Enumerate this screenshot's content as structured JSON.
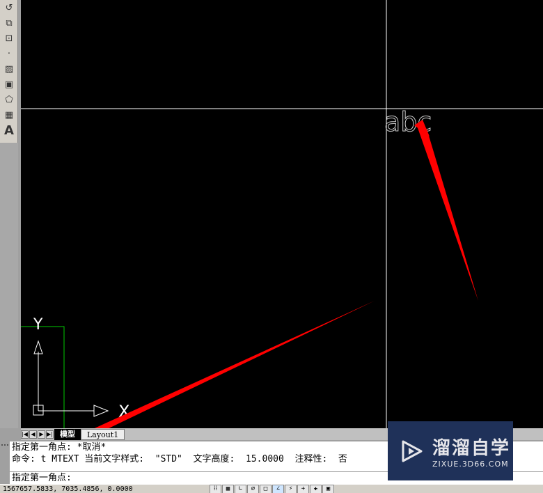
{
  "toolbar": {
    "items": [
      {
        "icon": "revision-cloud-icon",
        "glyph": "↺"
      },
      {
        "icon": "insert-block-icon",
        "glyph": "⧉"
      },
      {
        "icon": "make-block-icon",
        "glyph": "⊡"
      },
      {
        "icon": "point-icon",
        "glyph": "·"
      },
      {
        "icon": "hatch-icon",
        "glyph": "▨"
      },
      {
        "icon": "gradient-icon",
        "glyph": "▣"
      },
      {
        "icon": "region-icon",
        "glyph": "⬠"
      },
      {
        "icon": "table-icon",
        "glyph": "▦"
      },
      {
        "icon": "multiline-text-icon",
        "glyph": "A"
      }
    ]
  },
  "canvas": {
    "drawn_text": "abc",
    "ucs": {
      "x_label": "X",
      "y_label": "Y"
    },
    "annotation_color": "#ff0000"
  },
  "tabs": {
    "nav": [
      "|◀",
      "◀",
      "▶",
      "▶|"
    ],
    "items": [
      {
        "label": "模型",
        "active": true
      },
      {
        "label": "Layout1",
        "active": false
      }
    ]
  },
  "command": {
    "lines": [
      "指定第一角点: *取消*",
      "命令: t MTEXT 当前文字样式:  \"STD\"  文字高度:  15.0000  注释性:  否"
    ],
    "prompt": "指定第一角点:"
  },
  "status": {
    "coords": "1567657.5833, 7035.4856, 0.0000",
    "buttons": [
      {
        "name": "snap",
        "glyph": "⁞⁞"
      },
      {
        "name": "grid",
        "glyph": "▦"
      },
      {
        "name": "ortho",
        "glyph": "∟"
      },
      {
        "name": "polar",
        "glyph": "∅"
      },
      {
        "name": "osnap",
        "glyph": "□"
      },
      {
        "name": "otrack",
        "glyph": "∠",
        "on": true
      },
      {
        "name": "ducs",
        "glyph": "⚡"
      },
      {
        "name": "dyn",
        "glyph": "+"
      },
      {
        "name": "lwt",
        "glyph": "✚"
      },
      {
        "name": "model",
        "glyph": "▣"
      }
    ]
  },
  "watermark": {
    "name": "溜溜自学",
    "url": "ZIXUE.3D66.COM"
  }
}
